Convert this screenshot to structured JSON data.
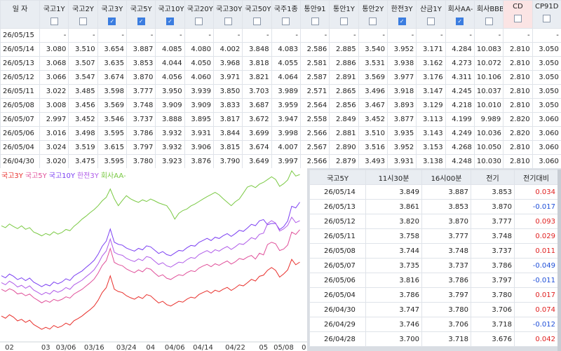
{
  "top_table": {
    "headers": [
      "일 자",
      "국고1Y",
      "국고2Y",
      "국고3Y",
      "국고5Y",
      "국고10Y",
      "국고20Y",
      "국고30Y",
      "국고50Y",
      "국주1종",
      "통안91",
      "통안1Y",
      "통안2Y",
      "한전3Y",
      "산금1Y",
      "회사AA-",
      "회사BBB-",
      "CD",
      "CP91D"
    ],
    "checked": [
      false,
      false,
      true,
      true,
      true,
      false,
      false,
      false,
      false,
      false,
      false,
      false,
      true,
      false,
      true,
      false,
      false,
      false
    ],
    "rows": [
      [
        "26/05/15",
        "-",
        "-",
        "-",
        "-",
        "-",
        "-",
        "-",
        "-",
        "-",
        "-",
        "-",
        "-",
        "-",
        "-",
        "-",
        "-",
        "-",
        "-"
      ],
      [
        "26/05/14",
        "3.080",
        "3.510",
        "3.654",
        "3.887",
        "4.085",
        "4.080",
        "4.002",
        "3.848",
        "4.083",
        "2.586",
        "2.885",
        "3.540",
        "3.952",
        "3.171",
        "4.284",
        "10.083",
        "2.810",
        "3.050"
      ],
      [
        "26/05/13",
        "3.068",
        "3.507",
        "3.635",
        "3.853",
        "4.044",
        "4.050",
        "3.968",
        "3.818",
        "4.055",
        "2.581",
        "2.886",
        "3.531",
        "3.938",
        "3.162",
        "4.273",
        "10.072",
        "2.810",
        "3.050"
      ],
      [
        "26/05/12",
        "3.066",
        "3.547",
        "3.674",
        "3.870",
        "4.056",
        "4.060",
        "3.971",
        "3.821",
        "4.064",
        "2.587",
        "2.891",
        "3.569",
        "3.977",
        "3.176",
        "4.311",
        "10.106",
        "2.810",
        "3.050"
      ],
      [
        "26/05/11",
        "3.022",
        "3.485",
        "3.598",
        "3.777",
        "3.950",
        "3.939",
        "3.850",
        "3.703",
        "3.989",
        "2.571",
        "2.865",
        "3.496",
        "3.918",
        "3.147",
        "4.245",
        "10.037",
        "2.810",
        "3.050"
      ],
      [
        "26/05/08",
        "3.008",
        "3.456",
        "3.569",
        "3.748",
        "3.909",
        "3.909",
        "3.833",
        "3.687",
        "3.959",
        "2.564",
        "2.856",
        "3.467",
        "3.893",
        "3.129",
        "4.218",
        "10.010",
        "2.810",
        "3.050"
      ],
      [
        "26/05/07",
        "2.997",
        "3.452",
        "3.546",
        "3.737",
        "3.888",
        "3.895",
        "3.817",
        "3.672",
        "3.947",
        "2.558",
        "2.849",
        "3.452",
        "3.877",
        "3.113",
        "4.199",
        "9.989",
        "2.820",
        "3.060"
      ],
      [
        "26/05/06",
        "3.016",
        "3.498",
        "3.595",
        "3.786",
        "3.932",
        "3.931",
        "3.844",
        "3.699",
        "3.998",
        "2.566",
        "2.881",
        "3.510",
        "3.935",
        "3.143",
        "4.249",
        "10.036",
        "2.820",
        "3.060"
      ],
      [
        "26/05/04",
        "3.024",
        "3.519",
        "3.615",
        "3.797",
        "3.932",
        "3.906",
        "3.815",
        "3.674",
        "4.007",
        "2.567",
        "2.890",
        "3.516",
        "3.952",
        "3.153",
        "4.268",
        "10.050",
        "2.810",
        "3.060"
      ],
      [
        "26/04/30",
        "3.020",
        "3.475",
        "3.595",
        "3.780",
        "3.923",
        "3.876",
        "3.790",
        "3.649",
        "3.997",
        "2.566",
        "2.879",
        "3.493",
        "3.931",
        "3.138",
        "4.248",
        "10.030",
        "2.810",
        "3.060"
      ]
    ]
  },
  "chart_data": {
    "type": "line",
    "categories": [
      null,
      null,
      "02",
      null,
      null,
      null,
      null,
      null,
      null,
      null,
      null,
      "03",
      null,
      null,
      null,
      null,
      "03/06",
      null,
      null,
      null,
      null,
      null,
      null,
      "03/16",
      null,
      null,
      null,
      null,
      null,
      null,
      null,
      "03/24",
      null,
      null,
      null,
      null,
      null,
      "04",
      null,
      null,
      null,
      null,
      null,
      "04/06",
      null,
      null,
      null,
      null,
      null,
      null,
      "04/14",
      null,
      null,
      null,
      null,
      null,
      null,
      null,
      "04/22",
      null,
      null,
      null,
      null,
      null,
      null,
      "05",
      null,
      null,
      null,
      null,
      "05/08",
      null,
      null,
      null,
      null,
      "0"
    ],
    "ylim": [
      3.1,
      4.32
    ],
    "series": [
      {
        "name": "국고3Y",
        "color": "#e8302c",
        "values": [
          3.266,
          3.25,
          3.275,
          3.258,
          3.231,
          3.242,
          3.22,
          3.236,
          3.205,
          3.188,
          3.17,
          3.185,
          3.172,
          3.198,
          3.183,
          3.194,
          3.215,
          3.201,
          3.232,
          3.248,
          3.266,
          3.29,
          3.312,
          3.338,
          3.38,
          3.435,
          3.47,
          3.555,
          3.459,
          3.442,
          3.435,
          3.412,
          3.398,
          3.387,
          3.405,
          3.392,
          3.42,
          3.411,
          3.385,
          3.36,
          3.372,
          3.348,
          3.338,
          3.355,
          3.372,
          3.366,
          3.387,
          3.402,
          3.395,
          3.421,
          3.435,
          3.448,
          3.43,
          3.452,
          3.441,
          3.459,
          3.472,
          3.45,
          3.468,
          3.49,
          3.483,
          3.505,
          3.53,
          3.518,
          3.552,
          3.56,
          3.595,
          3.615,
          3.595,
          3.546,
          3.569,
          3.598,
          3.674,
          3.635,
          3.654,
          null
        ]
      },
      {
        "name": "국고5Y",
        "color": "#e0509a",
        "values": [
          3.458,
          3.443,
          3.462,
          3.45,
          3.425,
          3.431,
          3.412,
          3.424,
          3.398,
          3.38,
          3.361,
          3.377,
          3.365,
          3.386,
          3.375,
          3.386,
          3.404,
          3.395,
          3.424,
          3.441,
          3.458,
          3.482,
          3.505,
          3.532,
          3.575,
          3.63,
          3.664,
          3.752,
          3.652,
          3.636,
          3.628,
          3.605,
          3.59,
          3.578,
          3.598,
          3.584,
          3.611,
          3.603,
          3.575,
          3.551,
          3.563,
          3.538,
          3.529,
          3.547,
          3.563,
          3.557,
          3.578,
          3.592,
          3.586,
          3.611,
          3.626,
          3.638,
          3.621,
          3.642,
          3.631,
          3.648,
          3.662,
          3.64,
          3.656,
          3.68,
          3.672,
          3.69,
          3.702,
          3.676,
          3.718,
          3.706,
          3.78,
          3.797,
          3.786,
          3.737,
          3.748,
          3.777,
          3.87,
          3.853,
          3.887,
          null
        ]
      },
      {
        "name": "국고10Y",
        "color": "#7b3ff2",
        "values": [
          3.556,
          3.541,
          3.568,
          3.552,
          3.528,
          3.541,
          3.521,
          3.539,
          3.51,
          3.494,
          3.477,
          3.494,
          3.483,
          3.511,
          3.498,
          3.511,
          3.534,
          3.522,
          3.555,
          3.573,
          3.59,
          3.616,
          3.64,
          3.667,
          3.711,
          3.768,
          3.805,
          3.892,
          3.797,
          3.782,
          3.776,
          3.755,
          3.743,
          3.733,
          3.753,
          3.742,
          3.771,
          3.764,
          3.74,
          3.716,
          3.73,
          3.708,
          3.7,
          3.719,
          3.738,
          3.734,
          3.757,
          3.774,
          3.769,
          3.796,
          3.81,
          3.825,
          3.809,
          3.833,
          3.824,
          3.844,
          3.859,
          3.839,
          3.859,
          3.883,
          3.875,
          3.899,
          3.926,
          3.916,
          3.951,
          3.96,
          3.923,
          3.932,
          3.932,
          3.888,
          3.909,
          3.95,
          4.056,
          4.044,
          4.085,
          null
        ]
      },
      {
        "name": "한전3Y",
        "color": "#b05ce8",
        "values": [
          3.506,
          3.491,
          3.517,
          3.5,
          3.475,
          3.487,
          3.466,
          3.483,
          3.453,
          3.437,
          3.419,
          3.436,
          3.424,
          3.451,
          3.437,
          3.449,
          3.471,
          3.458,
          3.49,
          3.507,
          3.524,
          3.549,
          3.572,
          3.599,
          3.642,
          3.698,
          3.734,
          3.82,
          3.725,
          3.709,
          3.703,
          3.681,
          3.668,
          3.658,
          3.677,
          3.665,
          3.694,
          3.686,
          3.661,
          3.637,
          3.65,
          3.627,
          3.618,
          3.636,
          3.654,
          3.649,
          3.671,
          3.687,
          3.681,
          3.708,
          3.723,
          3.737,
          3.72,
          3.743,
          3.733,
          3.752,
          3.766,
          3.745,
          3.764,
          3.787,
          3.781,
          3.804,
          3.83,
          3.819,
          3.854,
          3.862,
          3.931,
          3.952,
          3.935,
          3.877,
          3.893,
          3.918,
          3.977,
          3.938,
          3.952,
          null
        ]
      },
      {
        "name": "회사AA-",
        "color": "#7ac943",
        "values": [
          3.915,
          3.902,
          3.928,
          3.91,
          3.895,
          3.915,
          3.89,
          3.902,
          3.87,
          3.858,
          3.843,
          3.86,
          3.848,
          3.872,
          3.855,
          3.867,
          3.889,
          3.88,
          3.912,
          3.935,
          3.963,
          3.985,
          4.01,
          4.032,
          4.06,
          4.095,
          4.12,
          4.18,
          4.11,
          4.06,
          4.098,
          4.132,
          4.11,
          4.095,
          4.084,
          4.102,
          4.09,
          4.108,
          4.095,
          4.08,
          4.07,
          4.06,
          4.02,
          3.963,
          4.005,
          4.025,
          4.036,
          4.058,
          4.072,
          4.09,
          4.108,
          4.125,
          4.14,
          4.156,
          4.138,
          4.11,
          4.085,
          4.06,
          4.088,
          4.108,
          4.15,
          4.194,
          4.205,
          4.19,
          4.215,
          4.228,
          4.248,
          4.268,
          4.249,
          4.199,
          4.218,
          4.245,
          4.311,
          4.273,
          4.284,
          null
        ]
      }
    ]
  },
  "bottom_table": {
    "headers": [
      "국고5Y",
      "11시30분",
      "16시00분",
      "전기",
      "전기대비"
    ],
    "rows": [
      [
        "26/05/14",
        "3.849",
        "3.887",
        "3.853",
        "0.034"
      ],
      [
        "26/05/13",
        "3.861",
        "3.853",
        "3.870",
        "-0.017"
      ],
      [
        "26/05/12",
        "3.820",
        "3.870",
        "3.777",
        "0.093"
      ],
      [
        "26/05/11",
        "3.758",
        "3.777",
        "3.748",
        "0.029"
      ],
      [
        "26/05/08",
        "3.744",
        "3.748",
        "3.737",
        "0.011"
      ],
      [
        "26/05/07",
        "3.735",
        "3.737",
        "3.786",
        "-0.049"
      ],
      [
        "26/05/06",
        "3.816",
        "3.786",
        "3.797",
        "-0.011"
      ],
      [
        "26/05/04",
        "3.786",
        "3.797",
        "3.780",
        "0.017"
      ],
      [
        "26/04/30",
        "3.747",
        "3.780",
        "3.706",
        "0.074"
      ],
      [
        "26/04/29",
        "3.746",
        "3.706",
        "3.718",
        "-0.012"
      ],
      [
        "26/04/28",
        "3.700",
        "3.718",
        "3.676",
        "0.042"
      ]
    ]
  }
}
